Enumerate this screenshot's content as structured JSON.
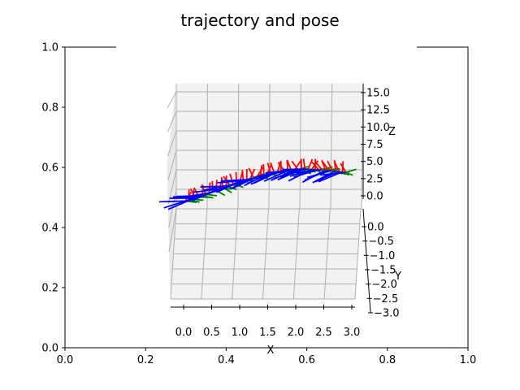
{
  "chart_data": {
    "type": "line",
    "title": "trajectory and pose",
    "outer_axes": {
      "xlim": [
        0.0,
        1.0
      ],
      "ylim": [
        0.0,
        1.0
      ],
      "xticks": [
        "0.0",
        "0.2",
        "0.4",
        "0.6",
        "0.8",
        "1.0"
      ],
      "yticks": [
        "0.0",
        "0.2",
        "0.4",
        "0.6",
        "0.8",
        "1.0"
      ]
    },
    "axes3d": {
      "xlabel": "X",
      "ylabel": "Y",
      "zlabel": "Z",
      "xlim": [
        0.0,
        3.0
      ],
      "ylim": [
        -3.0,
        0.0
      ],
      "zlim": [
        0.0,
        15.0
      ],
      "xticks": [
        "0.0",
        "0.5",
        "1.0",
        "1.5",
        "2.0",
        "2.5",
        "3.0"
      ],
      "yticks": [
        "0.0",
        "−0.5",
        "−1.0",
        "−1.5",
        "−2.0",
        "−2.5",
        "−3.0"
      ],
      "zticks": [
        "0.0",
        "2.5",
        "5.0",
        "7.5",
        "10.0",
        "12.5",
        "15.0"
      ],
      "grid": true,
      "pose_axis_colors": {
        "x": "#ff0000",
        "y": "#008000",
        "z": "#0000ff"
      }
    },
    "trajectory": [
      {
        "x": 0.0,
        "z": 1.0
      },
      {
        "x": 0.25,
        "z": 1.5
      },
      {
        "x": 0.5,
        "z": 2.2
      },
      {
        "x": 0.75,
        "z": 2.9
      },
      {
        "x": 1.0,
        "z": 3.5
      },
      {
        "x": 1.25,
        "z": 4.0
      },
      {
        "x": 1.5,
        "z": 4.5
      },
      {
        "x": 1.75,
        "z": 4.8
      },
      {
        "x": 2.0,
        "z": 5.0
      },
      {
        "x": 2.25,
        "z": 5.1
      },
      {
        "x": 2.5,
        "z": 5.0
      },
      {
        "x": 2.75,
        "z": 4.9
      },
      {
        "x": 3.0,
        "z": 4.6
      }
    ]
  }
}
